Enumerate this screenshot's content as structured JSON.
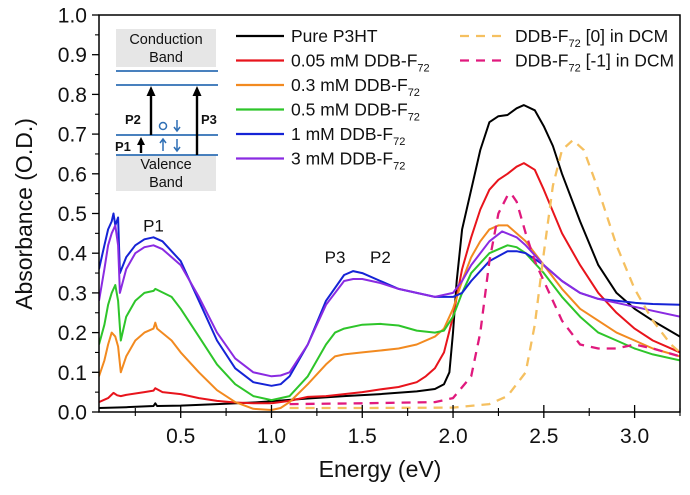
{
  "chart_data": {
    "type": "line",
    "title": "",
    "xlabel": "Energy (eV)",
    "ylabel": "Absorbance (O.D.)",
    "xlim": [
      0.05,
      3.25
    ],
    "ylim": [
      0.0,
      1.0
    ],
    "xticks": [
      0.5,
      1.0,
      1.5,
      2.0,
      2.5,
      3.0
    ],
    "xtick_labels": [
      "0.5",
      "1.0",
      "1.5",
      "2.0",
      "2.5",
      "3.0"
    ],
    "xminor": [
      0.25,
      0.75,
      1.25,
      1.75,
      2.25,
      2.75,
      3.25
    ],
    "yticks": [
      0.0,
      0.1,
      0.2,
      0.3,
      0.4,
      0.5,
      0.6,
      0.7,
      0.8,
      0.9,
      1.0
    ],
    "ytick_labels": [
      "0.0",
      "0.1",
      "0.2",
      "0.3",
      "0.4",
      "0.5",
      "0.6",
      "0.7",
      "0.8",
      "0.9",
      "1.0"
    ],
    "grid": false,
    "legend_placement": "top-center and top-right",
    "series": [
      {
        "name": "Pure P3HT",
        "legend_main": "Pure P3HT",
        "legend_sub": "",
        "color": "#000000",
        "dash": false,
        "x": [
          0.05,
          0.2,
          0.35,
          0.36,
          0.37,
          0.5,
          0.7,
          0.9,
          1.0,
          1.2,
          1.4,
          1.6,
          1.8,
          1.9,
          1.95,
          1.98,
          2.0,
          2.02,
          2.05,
          2.1,
          2.15,
          2.2,
          2.25,
          2.3,
          2.35,
          2.39,
          2.45,
          2.5,
          2.55,
          2.6,
          2.7,
          2.8,
          2.9,
          3.0,
          3.1,
          3.25
        ],
        "y": [
          0.01,
          0.012,
          0.015,
          0.022,
          0.015,
          0.016,
          0.02,
          0.024,
          0.027,
          0.034,
          0.04,
          0.045,
          0.052,
          0.058,
          0.07,
          0.1,
          0.2,
          0.33,
          0.46,
          0.56,
          0.66,
          0.73,
          0.745,
          0.748,
          0.765,
          0.773,
          0.76,
          0.72,
          0.67,
          0.6,
          0.48,
          0.37,
          0.3,
          0.26,
          0.23,
          0.19
        ]
      },
      {
        "name": "0.05 mM DDB-F72",
        "legend_main": "0.05 mM DDB-F",
        "legend_sub": "72",
        "color": "#e8141c",
        "dash": false,
        "x": [
          0.05,
          0.1,
          0.13,
          0.15,
          0.17,
          0.2,
          0.3,
          0.35,
          0.36,
          0.4,
          0.5,
          0.6,
          0.7,
          0.8,
          0.9,
          1.0,
          1.1,
          1.2,
          1.3,
          1.4,
          1.5,
          1.6,
          1.7,
          1.8,
          1.85,
          1.9,
          1.95,
          2.0,
          2.05,
          2.1,
          2.15,
          2.2,
          2.25,
          2.3,
          2.35,
          2.39,
          2.45,
          2.5,
          2.6,
          2.7,
          2.8,
          2.9,
          3.0,
          3.1,
          3.25
        ],
        "y": [
          0.025,
          0.035,
          0.048,
          0.042,
          0.04,
          0.043,
          0.05,
          0.054,
          0.06,
          0.05,
          0.045,
          0.035,
          0.028,
          0.024,
          0.022,
          0.022,
          0.028,
          0.038,
          0.04,
          0.045,
          0.05,
          0.057,
          0.063,
          0.075,
          0.09,
          0.11,
          0.15,
          0.24,
          0.36,
          0.44,
          0.51,
          0.56,
          0.585,
          0.6,
          0.618,
          0.627,
          0.61,
          0.56,
          0.45,
          0.37,
          0.3,
          0.25,
          0.21,
          0.18,
          0.15
        ]
      },
      {
        "name": "0.3 mM DDB-F72",
        "legend_main": "0.3 mM DDB-F",
        "legend_sub": "72",
        "color": "#f28a20",
        "dash": false,
        "x": [
          0.05,
          0.08,
          0.1,
          0.12,
          0.14,
          0.155,
          0.17,
          0.2,
          0.25,
          0.3,
          0.35,
          0.36,
          0.37,
          0.45,
          0.5,
          0.6,
          0.7,
          0.8,
          0.9,
          1.0,
          1.05,
          1.1,
          1.2,
          1.3,
          1.35,
          1.4,
          1.5,
          1.6,
          1.7,
          1.8,
          1.9,
          1.95,
          2.0,
          2.05,
          2.1,
          2.15,
          2.2,
          2.25,
          2.3,
          2.4,
          2.5,
          2.6,
          2.7,
          2.8,
          2.9,
          3.0,
          3.1,
          3.25
        ],
        "y": [
          0.09,
          0.13,
          0.17,
          0.2,
          0.19,
          0.165,
          0.1,
          0.14,
          0.18,
          0.2,
          0.21,
          0.225,
          0.21,
          0.18,
          0.15,
          0.1,
          0.055,
          0.025,
          0.008,
          0.005,
          0.01,
          0.025,
          0.07,
          0.12,
          0.14,
          0.145,
          0.15,
          0.155,
          0.16,
          0.17,
          0.19,
          0.21,
          0.26,
          0.33,
          0.39,
          0.43,
          0.46,
          0.47,
          0.47,
          0.43,
          0.37,
          0.31,
          0.26,
          0.23,
          0.2,
          0.18,
          0.16,
          0.14
        ]
      },
      {
        "name": "0.5 mM DDB-F72",
        "legend_main": "0.5  mM DDB-F",
        "legend_sub": "72",
        "color": "#2ec52a",
        "dash": false,
        "x": [
          0.05,
          0.08,
          0.1,
          0.12,
          0.14,
          0.155,
          0.17,
          0.2,
          0.25,
          0.3,
          0.35,
          0.36,
          0.45,
          0.5,
          0.6,
          0.7,
          0.8,
          0.9,
          1.0,
          1.1,
          1.2,
          1.3,
          1.35,
          1.4,
          1.5,
          1.6,
          1.7,
          1.8,
          1.9,
          1.95,
          2.0,
          2.05,
          2.1,
          2.2,
          2.3,
          2.35,
          2.4,
          2.5,
          2.6,
          2.7,
          2.8,
          2.9,
          3.0,
          3.1,
          3.25
        ],
        "y": [
          0.17,
          0.22,
          0.27,
          0.3,
          0.32,
          0.28,
          0.18,
          0.24,
          0.28,
          0.3,
          0.305,
          0.31,
          0.29,
          0.26,
          0.19,
          0.12,
          0.07,
          0.04,
          0.03,
          0.04,
          0.09,
          0.17,
          0.2,
          0.21,
          0.22,
          0.222,
          0.218,
          0.205,
          0.2,
          0.205,
          0.24,
          0.3,
          0.35,
          0.4,
          0.42,
          0.415,
          0.4,
          0.35,
          0.29,
          0.24,
          0.2,
          0.18,
          0.16,
          0.145,
          0.13
        ]
      },
      {
        "name": "1 mM DDB-F72",
        "legend_main": "1  mM DDB-F",
        "legend_sub": "72",
        "color": "#1523d6",
        "dash": false,
        "x": [
          0.05,
          0.08,
          0.1,
          0.12,
          0.13,
          0.14,
          0.155,
          0.165,
          0.2,
          0.25,
          0.3,
          0.35,
          0.4,
          0.5,
          0.6,
          0.7,
          0.8,
          0.9,
          1.0,
          1.05,
          1.1,
          1.2,
          1.3,
          1.4,
          1.45,
          1.5,
          1.6,
          1.7,
          1.8,
          1.9,
          2.0,
          2.05,
          2.1,
          2.2,
          2.3,
          2.35,
          2.4,
          2.5,
          2.6,
          2.7,
          2.8,
          2.9,
          3.0,
          3.1,
          3.25
        ],
        "y": [
          0.36,
          0.42,
          0.46,
          0.48,
          0.5,
          0.47,
          0.49,
          0.35,
          0.39,
          0.42,
          0.435,
          0.44,
          0.43,
          0.38,
          0.28,
          0.18,
          0.11,
          0.075,
          0.066,
          0.07,
          0.09,
          0.17,
          0.28,
          0.345,
          0.355,
          0.35,
          0.33,
          0.31,
          0.3,
          0.29,
          0.29,
          0.3,
          0.33,
          0.38,
          0.405,
          0.405,
          0.4,
          0.37,
          0.33,
          0.3,
          0.285,
          0.28,
          0.275,
          0.272,
          0.27
        ]
      },
      {
        "name": "3 mM DDB-F72",
        "legend_main": "3  mM DDB-F",
        "legend_sub": "72",
        "color": "#8a2be2",
        "dash": false,
        "x": [
          0.05,
          0.08,
          0.1,
          0.12,
          0.14,
          0.155,
          0.165,
          0.2,
          0.25,
          0.3,
          0.35,
          0.4,
          0.5,
          0.6,
          0.7,
          0.8,
          0.9,
          1.0,
          1.05,
          1.1,
          1.2,
          1.3,
          1.4,
          1.45,
          1.5,
          1.6,
          1.7,
          1.8,
          1.9,
          2.0,
          2.05,
          2.1,
          2.2,
          2.27,
          2.35,
          2.4,
          2.5,
          2.6,
          2.7,
          2.8,
          2.9,
          3.0,
          3.1,
          3.25
        ],
        "y": [
          0.28,
          0.36,
          0.42,
          0.45,
          0.47,
          0.42,
          0.3,
          0.36,
          0.4,
          0.415,
          0.42,
          0.41,
          0.37,
          0.29,
          0.2,
          0.135,
          0.1,
          0.09,
          0.092,
          0.1,
          0.17,
          0.27,
          0.33,
          0.335,
          0.335,
          0.325,
          0.31,
          0.3,
          0.29,
          0.3,
          0.33,
          0.37,
          0.43,
          0.455,
          0.44,
          0.42,
          0.37,
          0.33,
          0.3,
          0.285,
          0.275,
          0.265,
          0.255,
          0.24
        ]
      },
      {
        "name": "DDB-F72 [0] in DCM",
        "legend_main": "DDB-F",
        "legend_sub": "72",
        "legend_suffix": " [0] in DCM",
        "color": "#f5c060",
        "dash": true,
        "x": [
          1.1,
          1.5,
          2.0,
          2.2,
          2.3,
          2.4,
          2.45,
          2.5,
          2.55,
          2.6,
          2.66,
          2.72,
          2.8,
          2.9,
          3.0,
          3.1,
          3.2,
          3.25
        ],
        "y": [
          0.01,
          0.01,
          0.011,
          0.02,
          0.04,
          0.1,
          0.22,
          0.4,
          0.57,
          0.66,
          0.685,
          0.66,
          0.56,
          0.42,
          0.31,
          0.23,
          0.17,
          0.15
        ]
      },
      {
        "name": "DDB-F72 [-1] in DCM",
        "legend_main": "DDB-F",
        "legend_sub": "72",
        "legend_suffix": " [-1] in DCM",
        "color": "#e0197d",
        "dash": true,
        "x": [
          1.1,
          1.5,
          1.9,
          2.0,
          2.1,
          2.15,
          2.2,
          2.25,
          2.3,
          2.32,
          2.35,
          2.4,
          2.45,
          2.5,
          2.6,
          2.7,
          2.8,
          2.9,
          3.0,
          3.1,
          3.25
        ],
        "y": [
          0.02,
          0.022,
          0.025,
          0.035,
          0.09,
          0.2,
          0.38,
          0.5,
          0.545,
          0.55,
          0.53,
          0.45,
          0.38,
          0.33,
          0.23,
          0.17,
          0.16,
          0.16,
          0.17,
          0.16,
          0.14
        ]
      }
    ],
    "annotations": [
      {
        "text": "P1",
        "x": 0.35,
        "y": 0.455
      },
      {
        "text": "P3",
        "x": 1.35,
        "y": 0.375
      },
      {
        "text": "P2",
        "x": 1.6,
        "y": 0.375
      }
    ],
    "inset": {
      "conduction_band_label": [
        "Conduction",
        "Band"
      ],
      "valence_band_label": [
        "Valence",
        "Band"
      ],
      "transitions": [
        "P1",
        "P2",
        "P3"
      ],
      "band_color": "#e6e6e6",
      "level_color": "#2f6fb5"
    }
  }
}
